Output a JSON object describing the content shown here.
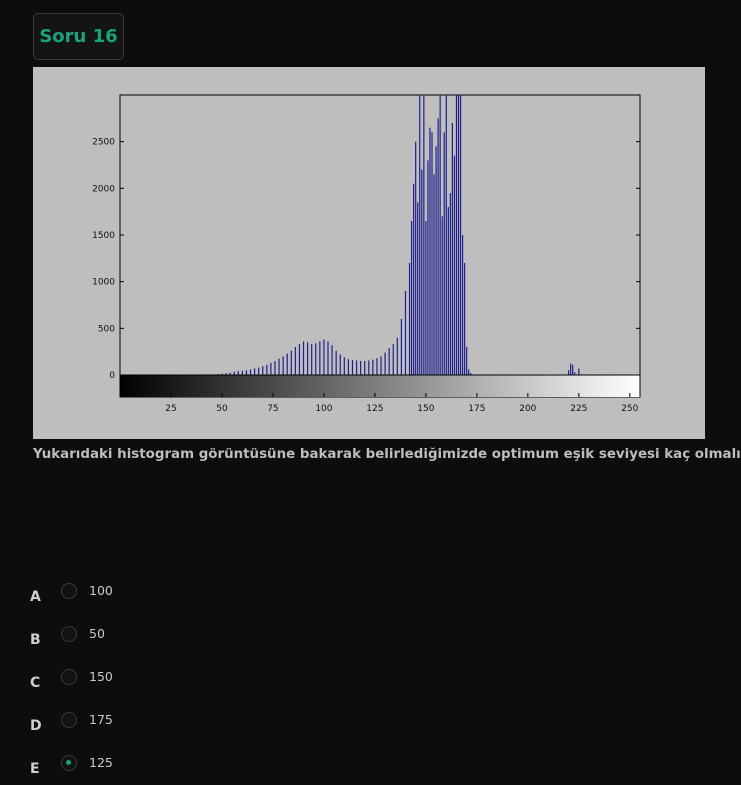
{
  "question_badge": "Soru 16",
  "question_text": "Yukarıdaki histogram görüntüsüne bakarak belirlediğimizde optimum eşik seviyesi kaç olmalıdır.",
  "colors": {
    "accent": "#1aa37a",
    "background": "#0d0d0d",
    "figure_background": "#bebebe",
    "bar_color": "#1f1f8c"
  },
  "chart_data": {
    "type": "bar",
    "title": "",
    "xlabel": "",
    "ylabel": "",
    "xlim": [
      0,
      255
    ],
    "ylim": [
      0,
      3000
    ],
    "x_ticks": [
      25,
      50,
      75,
      100,
      125,
      150,
      175,
      200,
      225,
      250
    ],
    "y_ticks": [
      0,
      500,
      1000,
      1500,
      2000,
      2500
    ],
    "colorbar": "grayscale gradient 0-255 beneath x axis",
    "x": [
      48,
      50,
      52,
      54,
      56,
      58,
      60,
      62,
      64,
      66,
      68,
      70,
      72,
      74,
      76,
      78,
      80,
      82,
      84,
      86,
      88,
      90,
      92,
      94,
      96,
      98,
      100,
      102,
      104,
      106,
      108,
      110,
      112,
      114,
      116,
      118,
      120,
      122,
      124,
      126,
      128,
      130,
      132,
      134,
      136,
      138,
      140,
      142,
      143,
      144,
      145,
      146,
      147,
      148,
      149,
      150,
      151,
      152,
      153,
      154,
      155,
      156,
      157,
      158,
      159,
      160,
      161,
      162,
      163,
      164,
      165,
      166,
      167,
      168,
      169,
      170,
      171,
      172,
      220,
      221,
      222,
      223,
      225
    ],
    "values": [
      10,
      15,
      20,
      25,
      35,
      40,
      45,
      50,
      60,
      70,
      80,
      95,
      110,
      130,
      150,
      175,
      200,
      230,
      260,
      300,
      330,
      360,
      350,
      330,
      340,
      360,
      380,
      360,
      320,
      260,
      220,
      190,
      170,
      160,
      155,
      150,
      150,
      155,
      165,
      180,
      200,
      240,
      290,
      330,
      400,
      600,
      900,
      1200,
      1650,
      2050,
      2500,
      1850,
      3000,
      2200,
      3000,
      1650,
      2300,
      2650,
      2600,
      2150,
      2450,
      2750,
      3000,
      1700,
      2600,
      3000,
      1800,
      1950,
      2700,
      2350,
      3000,
      3000,
      3000,
      1500,
      1200,
      300,
      60,
      20,
      50,
      120,
      110,
      30,
      70
    ]
  },
  "options": [
    {
      "letter": "A",
      "value": "100",
      "selected": false
    },
    {
      "letter": "B",
      "value": "50",
      "selected": false
    },
    {
      "letter": "C",
      "value": "150",
      "selected": false
    },
    {
      "letter": "D",
      "value": "175",
      "selected": false
    },
    {
      "letter": "E",
      "value": "125",
      "selected": true
    }
  ]
}
